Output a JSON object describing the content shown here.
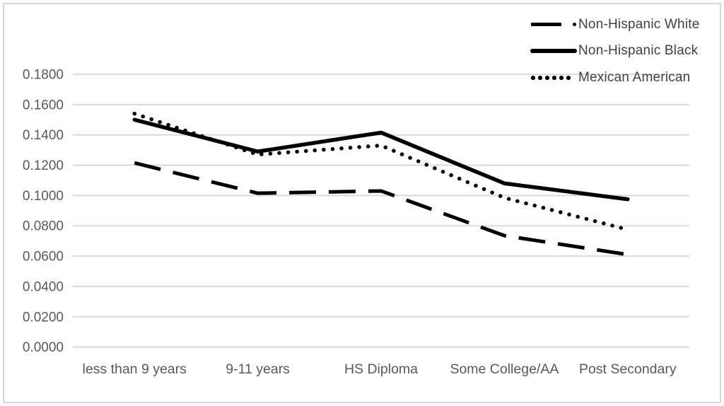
{
  "figure": {
    "background_color": "#ffffff",
    "border_color": "#d8d8d8",
    "line_color": "#000000",
    "axis_label_color": "#595959",
    "legend_text_color": "#404040",
    "gridline_color": "#dadada"
  },
  "chart_data": {
    "type": "line",
    "title": "",
    "xlabel": "",
    "ylabel": "",
    "categories": [
      "less than 9 years",
      "9-11 years",
      "HS Diploma",
      "Some College/AA",
      "Post Secondary"
    ],
    "series": [
      {
        "name": "Non-Hispanic White",
        "style": "long-dash",
        "color": "#000000",
        "values": [
          0.1215,
          0.1015,
          0.103,
          0.0735,
          0.061
        ]
      },
      {
        "name": "Non-Hispanic Black",
        "style": "solid",
        "color": "#000000",
        "values": [
          0.15,
          0.129,
          0.1415,
          0.108,
          0.0975
        ]
      },
      {
        "name": "Mexican American",
        "style": "dotted",
        "color": "#000000",
        "values": [
          0.154,
          0.127,
          0.133,
          0.0985,
          0.0775
        ]
      }
    ],
    "ylim": [
      0.0,
      0.18
    ],
    "y_tick_step": 0.02,
    "y_tick_labels": [
      "0.0000",
      "0.0200",
      "0.0400",
      "0.0600",
      "0.0800",
      "0.1000",
      "0.1200",
      "0.1400",
      "0.1600",
      "0.1800"
    ],
    "grid": "horizontal",
    "legend_position": "top-right"
  }
}
